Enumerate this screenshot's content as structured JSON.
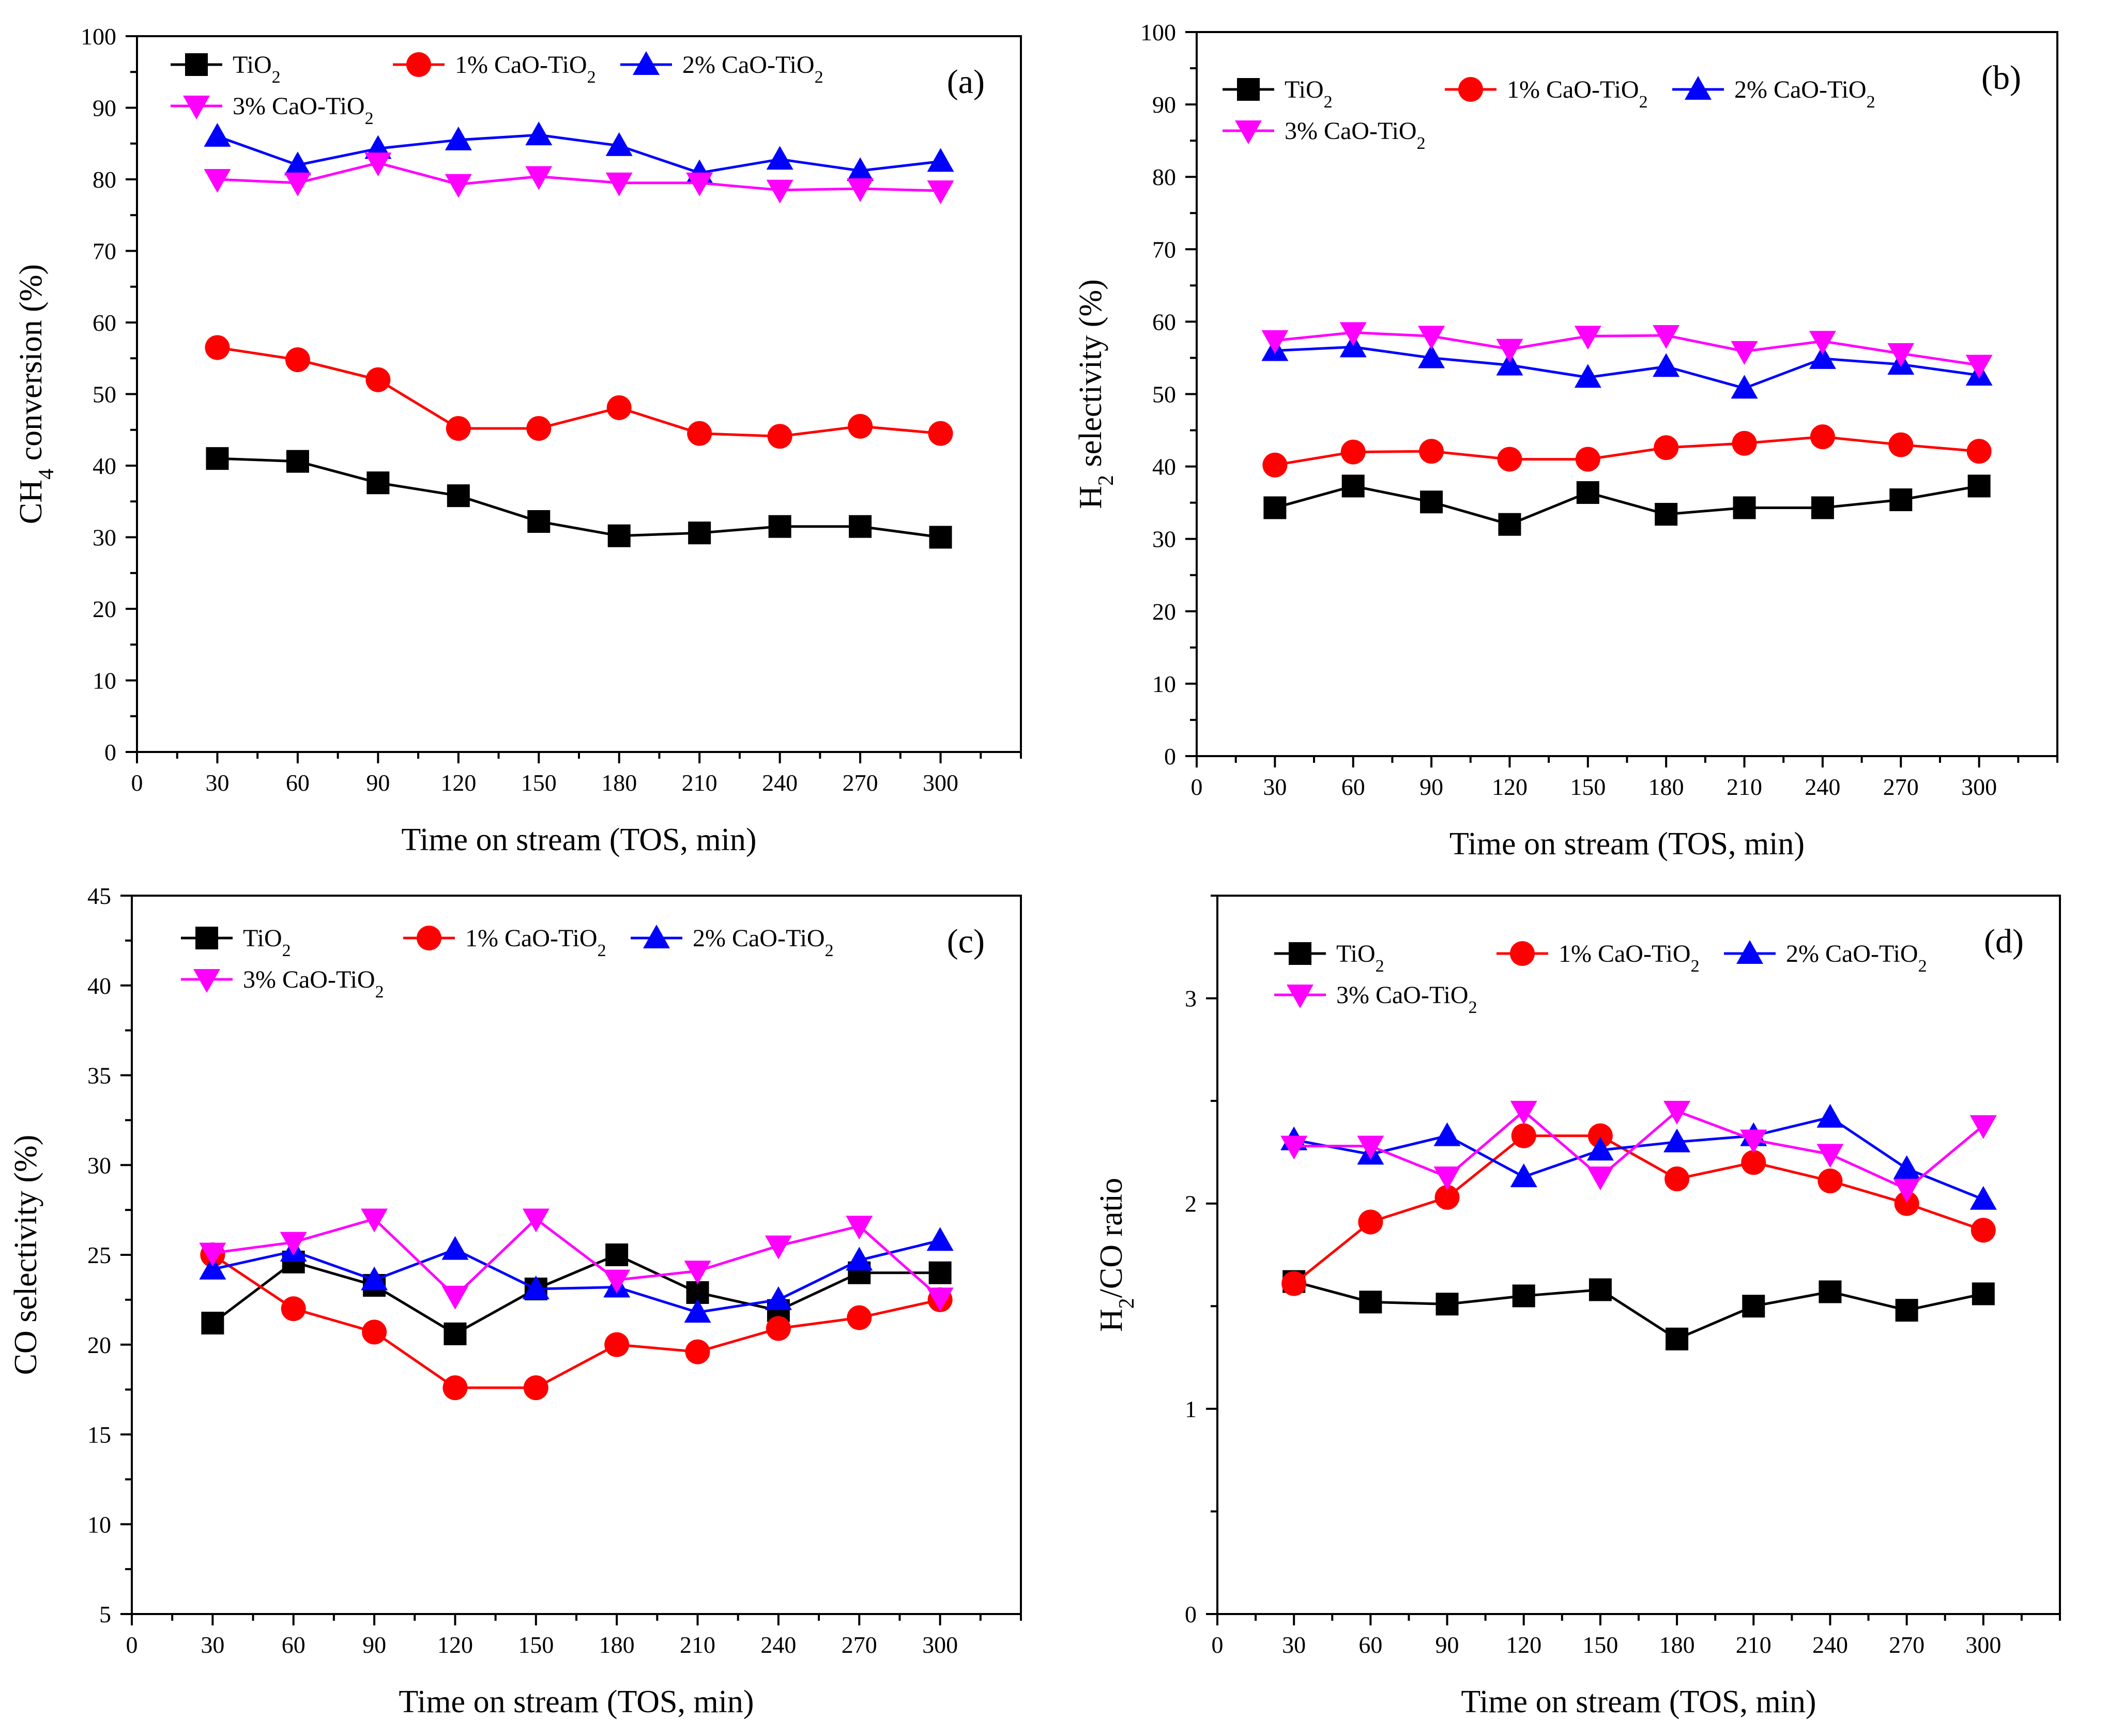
{
  "chart_data": [
    {
      "type": "line",
      "panel_label": "(a)",
      "title": "",
      "xlabel": "Time on stream (TOS, min)",
      "ylabel_main": "CH",
      "ylabel_sub": "4",
      "ylabel_rest": " conversion (%)",
      "xlim": [
        0,
        330
      ],
      "ylim": [
        0,
        100
      ],
      "xticks": [
        0,
        30,
        60,
        90,
        120,
        150,
        180,
        210,
        240,
        270,
        300
      ],
      "yticks": [
        0,
        10,
        20,
        30,
        40,
        50,
        60,
        70,
        80,
        90,
        100
      ],
      "x": [
        30,
        60,
        90,
        120,
        150,
        180,
        210,
        240,
        270,
        300
      ],
      "series": [
        {
          "name": "TiO",
          "name_sub": "2",
          "name_rest": "",
          "color": "#000000",
          "marker": "square",
          "values": [
            41.0,
            40.6,
            37.6,
            35.8,
            32.2,
            30.2,
            30.6,
            31.5,
            31.5,
            30.0
          ]
        },
        {
          "name": "1% CaO-TiO",
          "name_sub": "2",
          "name_rest": "",
          "color": "#ff0000",
          "marker": "circle",
          "values": [
            56.5,
            54.8,
            52.0,
            45.2,
            45.2,
            48.1,
            44.5,
            44.1,
            45.5,
            44.5
          ]
        },
        {
          "name": "2% CaO-TiO",
          "name_sub": "2",
          "name_rest": "",
          "color": "#0000ff",
          "marker": "triangle-up",
          "values": [
            86.0,
            82.0,
            84.3,
            85.5,
            86.2,
            84.7,
            80.9,
            82.8,
            81.2,
            82.5
          ]
        },
        {
          "name": "3% CaO-TiO",
          "name_sub": "2",
          "name_rest": "",
          "color": "#ff00ff",
          "marker": "triangle-down",
          "values": [
            80.0,
            79.5,
            82.3,
            79.3,
            80.4,
            79.5,
            79.5,
            78.5,
            78.7,
            78.4
          ]
        }
      ]
    },
    {
      "type": "line",
      "panel_label": "(b)",
      "title": "",
      "xlabel": "Time on stream (TOS, min)",
      "ylabel_main": "H",
      "ylabel_sub": "2",
      "ylabel_rest": " selectivity (%)",
      "xlim": [
        0,
        330
      ],
      "ylim": [
        0,
        100
      ],
      "xticks": [
        0,
        30,
        60,
        90,
        120,
        150,
        180,
        210,
        240,
        270,
        300
      ],
      "yticks": [
        0,
        10,
        20,
        30,
        40,
        50,
        60,
        70,
        80,
        90,
        100
      ],
      "x": [
        30,
        60,
        90,
        120,
        150,
        180,
        210,
        240,
        270,
        300
      ],
      "series": [
        {
          "name": "TiO",
          "name_sub": "2",
          "name_rest": "",
          "color": "#000000",
          "marker": "square",
          "values": [
            34.3,
            37.3,
            35.1,
            32.0,
            36.4,
            33.4,
            34.3,
            34.3,
            35.4,
            37.3
          ]
        },
        {
          "name": "1% CaO-TiO",
          "name_sub": "2",
          "name_rest": "",
          "color": "#ff0000",
          "marker": "circle",
          "values": [
            40.2,
            42.0,
            42.1,
            41.0,
            41.0,
            42.6,
            43.2,
            44.1,
            43.0,
            42.1
          ]
        },
        {
          "name": "2% CaO-TiO",
          "name_sub": "2",
          "name_rest": "",
          "color": "#0000ff",
          "marker": "triangle-up",
          "values": [
            56.0,
            56.5,
            55.0,
            54.0,
            52.3,
            53.8,
            50.8,
            54.9,
            54.1,
            52.6
          ]
        },
        {
          "name": "3% CaO-TiO",
          "name_sub": "2",
          "name_rest": "",
          "color": "#ff00ff",
          "marker": "triangle-down",
          "values": [
            57.4,
            58.5,
            58.0,
            56.2,
            58.0,
            58.1,
            55.9,
            57.3,
            55.6,
            54.0
          ]
        }
      ]
    },
    {
      "type": "line",
      "panel_label": "(c)",
      "title": "",
      "xlabel": "Time on stream (TOS, min)",
      "ylabel_main": "CO selectivity (%)",
      "ylabel_sub": "",
      "ylabel_rest": "",
      "xlim": [
        0,
        330
      ],
      "ylim": [
        5,
        45
      ],
      "xticks": [
        0,
        30,
        60,
        90,
        120,
        150,
        180,
        210,
        240,
        270,
        300
      ],
      "yticks": [
        5,
        10,
        15,
        20,
        25,
        30,
        35,
        40,
        45
      ],
      "x": [
        30,
        60,
        90,
        120,
        150,
        180,
        210,
        240,
        270,
        300
      ],
      "series": [
        {
          "name": "TiO",
          "name_sub": "2",
          "name_rest": "",
          "color": "#000000",
          "marker": "square",
          "values": [
            21.2,
            24.6,
            23.3,
            20.6,
            23.1,
            25.0,
            22.9,
            21.9,
            24.0,
            24.0
          ]
        },
        {
          "name": "1% CaO-TiO",
          "name_sub": "2",
          "name_rest": "",
          "color": "#ff0000",
          "marker": "circle",
          "values": [
            25.0,
            22.0,
            20.7,
            17.6,
            17.6,
            20.0,
            19.6,
            20.9,
            21.5,
            22.5
          ]
        },
        {
          "name": "2% CaO-TiO",
          "name_sub": "2",
          "name_rest": "",
          "color": "#0000ff",
          "marker": "triangle-up",
          "values": [
            24.2,
            25.2,
            23.6,
            25.3,
            23.1,
            23.2,
            21.8,
            22.5,
            24.7,
            25.8
          ]
        },
        {
          "name": "3% CaO-TiO",
          "name_sub": "2",
          "name_rest": "",
          "color": "#ff00ff",
          "marker": "triangle-down",
          "values": [
            25.1,
            25.7,
            27.0,
            22.7,
            27.0,
            23.6,
            24.1,
            25.5,
            26.6,
            22.6
          ]
        }
      ]
    },
    {
      "type": "line",
      "panel_label": "(d)",
      "title": "",
      "xlabel": "Time on stream (TOS, min)",
      "ylabel_main": "H",
      "ylabel_sub": "2",
      "ylabel_rest": "/CO ratio",
      "xlim": [
        0,
        330
      ],
      "ylim": [
        0,
        3.5
      ],
      "xticks": [
        0,
        30,
        60,
        90,
        120,
        150,
        180,
        210,
        240,
        270,
        300
      ],
      "yticks": [
        0,
        1,
        2,
        3
      ],
      "x": [
        30,
        60,
        90,
        120,
        150,
        180,
        210,
        240,
        270,
        300
      ],
      "series": [
        {
          "name": "TiO",
          "name_sub": "2",
          "name_rest": "",
          "color": "#000000",
          "marker": "square",
          "values": [
            1.62,
            1.52,
            1.51,
            1.55,
            1.58,
            1.34,
            1.5,
            1.57,
            1.48,
            1.56
          ]
        },
        {
          "name": "1% CaO-TiO",
          "name_sub": "2",
          "name_rest": "",
          "color": "#ff0000",
          "marker": "circle",
          "values": [
            1.61,
            1.91,
            2.03,
            2.33,
            2.33,
            2.12,
            2.2,
            2.11,
            2.0,
            1.87
          ]
        },
        {
          "name": "2% CaO-TiO",
          "name_sub": "2",
          "name_rest": "",
          "color": "#0000ff",
          "marker": "triangle-up",
          "values": [
            2.31,
            2.24,
            2.33,
            2.13,
            2.26,
            2.3,
            2.33,
            2.42,
            2.17,
            2.02
          ]
        },
        {
          "name": "3% CaO-TiO",
          "name_sub": "2",
          "name_rest": "",
          "color": "#ff00ff",
          "marker": "triangle-down",
          "values": [
            2.28,
            2.28,
            2.13,
            2.45,
            2.13,
            2.45,
            2.31,
            2.24,
            2.07,
            2.38
          ]
        }
      ]
    }
  ]
}
